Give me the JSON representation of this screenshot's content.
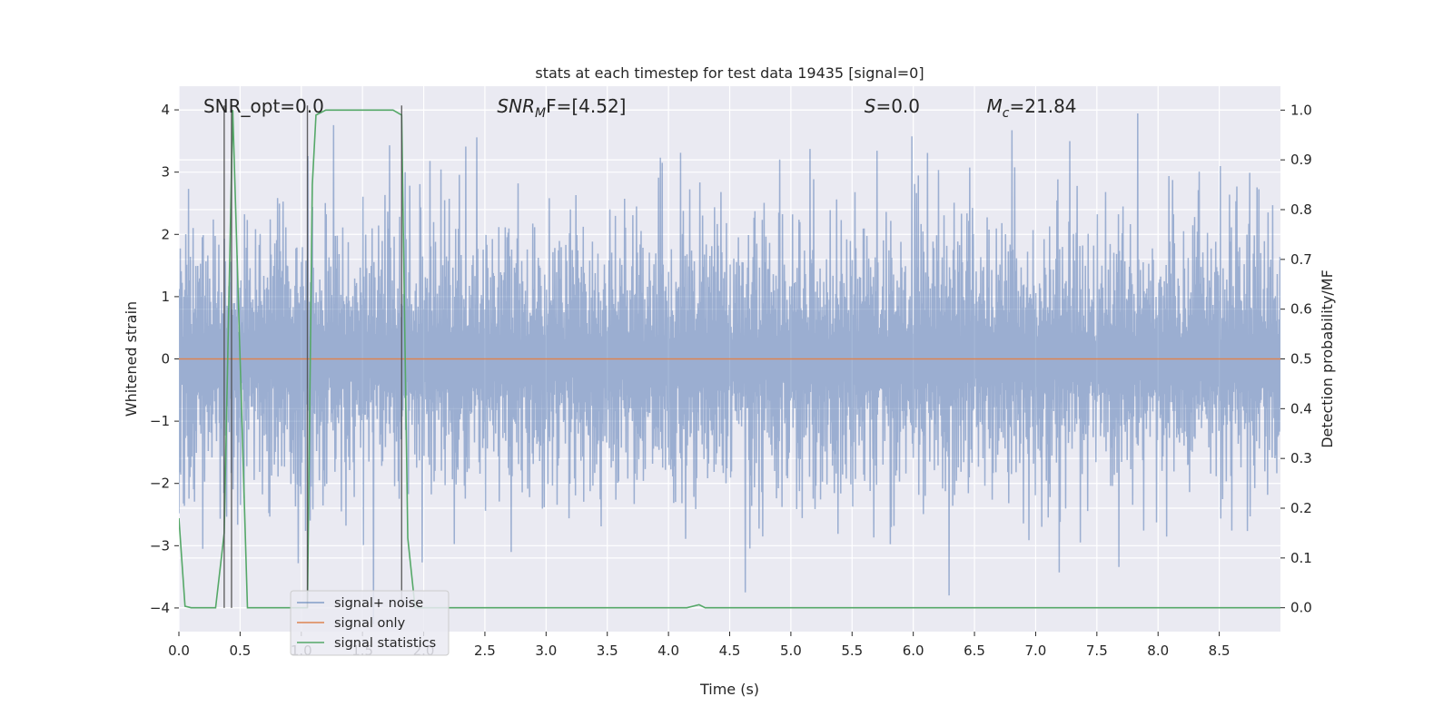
{
  "chart_data": {
    "type": "line",
    "title": "stats at each timestep for test data 19435 [signal=0]",
    "xlabel": "Time (s)",
    "ylabel": "Whitened strain",
    "ylabel_right": "Detection probability/MF",
    "xlim": [
      0.0,
      9.0
    ],
    "ylim": [
      -4.38,
      4.38
    ],
    "ylim_right": [
      -0.048,
      1.048
    ],
    "xticks": [
      0.0,
      0.5,
      1.0,
      1.5,
      2.0,
      2.5,
      3.0,
      3.5,
      4.0,
      4.5,
      5.0,
      5.5,
      6.0,
      6.5,
      7.0,
      7.5,
      8.0,
      8.5
    ],
    "xtick_labels": [
      "0.0",
      "0.5",
      "1.0",
      "1.5",
      "2.0",
      "2.5",
      "3.0",
      "3.5",
      "4.0",
      "4.5",
      "5.0",
      "5.5",
      "6.0",
      "6.5",
      "7.0",
      "7.5",
      "8.0",
      "8.5"
    ],
    "yticks": [
      -4,
      -3,
      -2,
      -1,
      0,
      1,
      2,
      3,
      4
    ],
    "ytick_labels": [
      "−4",
      "−3",
      "−2",
      "−1",
      "0",
      "1",
      "2",
      "3",
      "4"
    ],
    "yticks_right": [
      0.0,
      0.1,
      0.2,
      0.3,
      0.4,
      0.5,
      0.6,
      0.7,
      0.8,
      0.9,
      1.0
    ],
    "ytick_right_labels": [
      "0.0",
      "0.1",
      "0.2",
      "0.3",
      "0.4",
      "0.5",
      "0.6",
      "0.7",
      "0.8",
      "0.9",
      "1.0"
    ],
    "grid": true,
    "legend_position": "lower-left",
    "annotations": [
      {
        "name": "snr-opt",
        "t": 0.2,
        "label": "SNR_opt=0.0",
        "italic_prefix": "",
        "subscript": "",
        "rest": ""
      },
      {
        "name": "snr-mf",
        "t": 2.6,
        "label": "",
        "italic_prefix": "SNR",
        "subscript": "M",
        "rest": "F=[4.52]"
      },
      {
        "name": "s-value",
        "t": 5.6,
        "label": "",
        "italic_prefix": "S",
        "subscript": "",
        "rest": "=0.0"
      },
      {
        "name": "chirp-mass",
        "t": 6.6,
        "label": "",
        "italic_prefix": "M",
        "subscript": "c",
        "rest": "=21.84"
      }
    ],
    "vlines": [
      0.37,
      0.43,
      1.05,
      1.82
    ],
    "series": [
      {
        "name": "signal+ noise",
        "color": "#4c72b0",
        "alpha": 0.5,
        "kind": "noise",
        "t_range": [
          0.0,
          9.0
        ],
        "typical_max_abs": 4.0
      },
      {
        "name": "signal only",
        "color": "#dd8452",
        "kind": "line",
        "x": [
          0.0,
          9.0
        ],
        "y": [
          0.0,
          0.0
        ]
      },
      {
        "name": "signal statistics",
        "color": "#55a868",
        "kind": "line",
        "axis": "right",
        "x": [
          0.0,
          0.05,
          0.1,
          0.3,
          0.37,
          0.44,
          0.5,
          0.56,
          0.6,
          1.05,
          1.09,
          1.12,
          1.2,
          1.75,
          1.82,
          1.87,
          1.93,
          2.0,
          4.15,
          4.25,
          4.3,
          9.0
        ],
        "y": [
          0.18,
          0.003,
          0.0,
          0.0,
          0.15,
          1.0,
          0.5,
          0.0,
          0.0,
          0.0,
          0.85,
          0.99,
          1.0,
          1.0,
          0.99,
          0.14,
          0.0,
          0.0,
          0.0,
          0.006,
          0.0,
          0.0
        ]
      }
    ]
  }
}
